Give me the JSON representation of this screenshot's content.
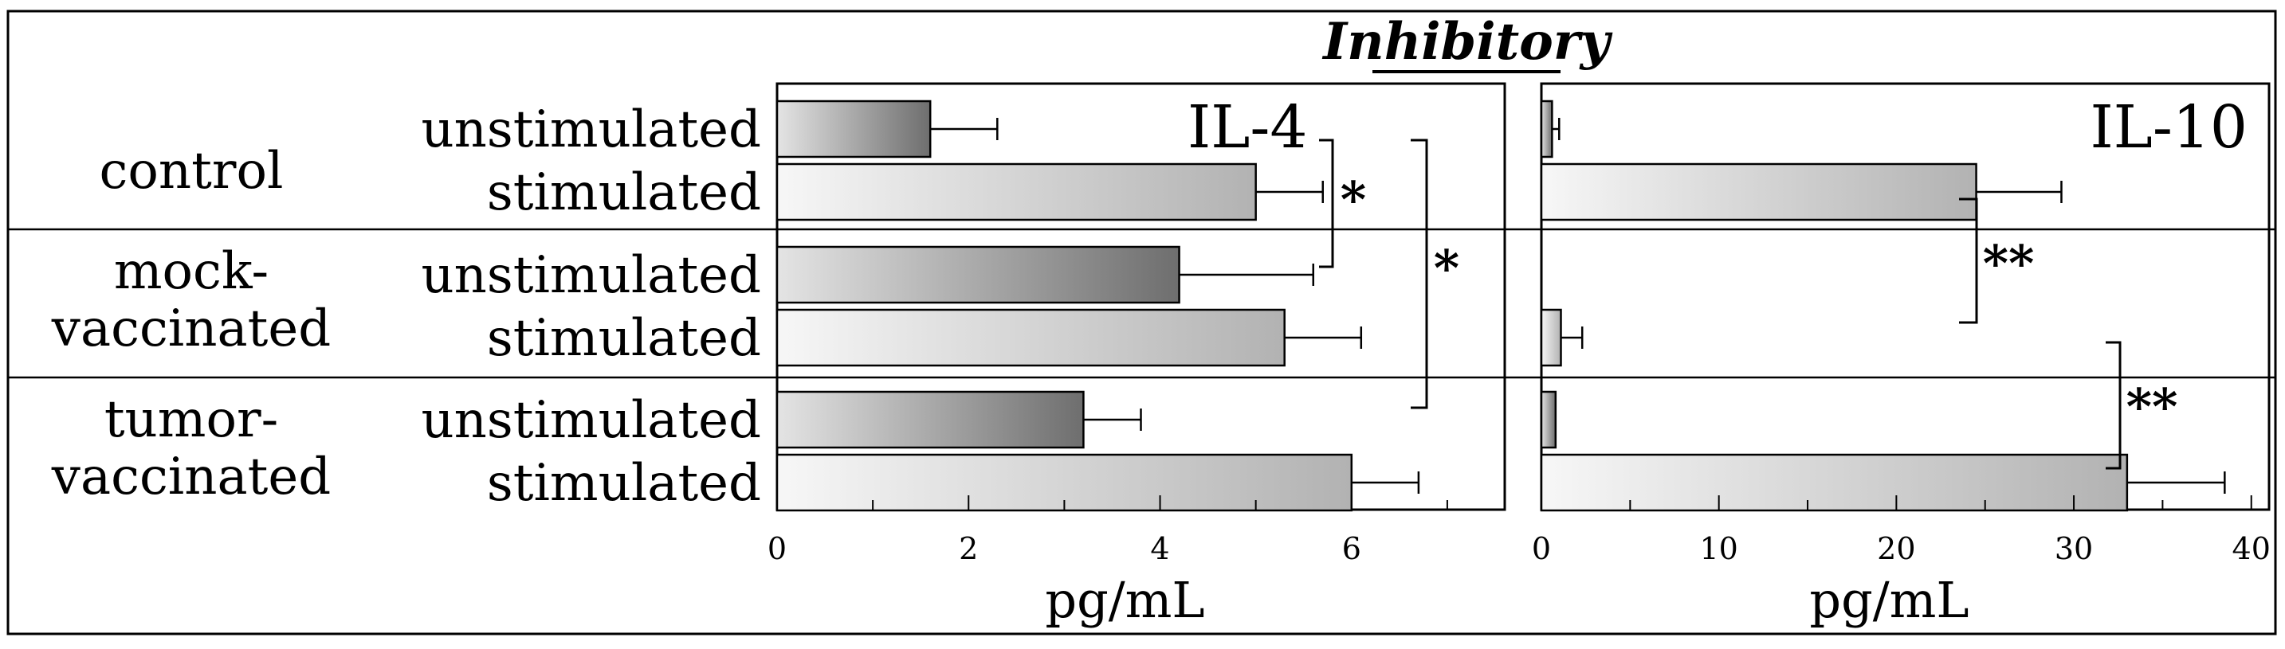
{
  "title": "Inhibitory",
  "groups": [
    {
      "label_lines": [
        "control"
      ],
      "conditions": [
        "unstimulated",
        "stimulated"
      ]
    },
    {
      "label_lines": [
        "mock-",
        "vaccinated"
      ],
      "conditions": [
        "unstimulated",
        "stimulated"
      ]
    },
    {
      "label_lines": [
        "tumor-",
        "vaccinated"
      ],
      "conditions": [
        "unstimulated",
        "stimulated"
      ]
    }
  ],
  "colors": {
    "unstimulated_dark": "#6e6e6e",
    "unstimulated_light": "#e4e4e4",
    "stimulated_dark": "#b2b2b2",
    "stimulated_light": "#f7f7f7",
    "stroke": "#000000"
  },
  "chart_data": [
    {
      "type": "bar",
      "orientation": "horizontal",
      "title": "IL-4",
      "xlabel": "pg/mL",
      "xlim": [
        0,
        7.6
      ],
      "xticks": [
        0,
        2,
        4,
        6
      ],
      "categories": [
        "control unstimulated",
        "control stimulated",
        "mock-vaccinated unstimulated",
        "mock-vaccinated stimulated",
        "tumor-vaccinated unstimulated",
        "tumor-vaccinated stimulated"
      ],
      "values": [
        1.6,
        5.0,
        4.2,
        5.3,
        3.2,
        6.0
      ],
      "errors": [
        0.7,
        0.7,
        1.4,
        0.8,
        0.6,
        0.7
      ],
      "significance": [
        {
          "between": [
            "control stimulated",
            "mock-vaccinated unstimulated"
          ],
          "label": "*"
        },
        {
          "between": [
            "control stimulated",
            "tumor-vaccinated unstimulated"
          ],
          "label": "*"
        }
      ]
    },
    {
      "type": "bar",
      "orientation": "horizontal",
      "title": "IL-10",
      "xlabel": "pg/mL",
      "xlim": [
        0,
        41
      ],
      "xticks": [
        0,
        10,
        20,
        30,
        40
      ],
      "categories": [
        "control unstimulated",
        "control stimulated",
        "mock-vaccinated unstimulated",
        "mock-vaccinated stimulated",
        "tumor-vaccinated unstimulated",
        "tumor-vaccinated stimulated"
      ],
      "values": [
        0.6,
        24.5,
        0,
        1.1,
        0.8,
        33
      ],
      "errors": [
        0.4,
        4.8,
        0,
        1.2,
        0,
        5.5
      ],
      "significance": [
        {
          "between": [
            "control stimulated",
            "mock-vaccinated stimulated"
          ],
          "label": "**"
        },
        {
          "between": [
            "tumor-vaccinated unstimulated",
            "tumor-vaccinated stimulated"
          ],
          "label": "**"
        }
      ]
    }
  ]
}
